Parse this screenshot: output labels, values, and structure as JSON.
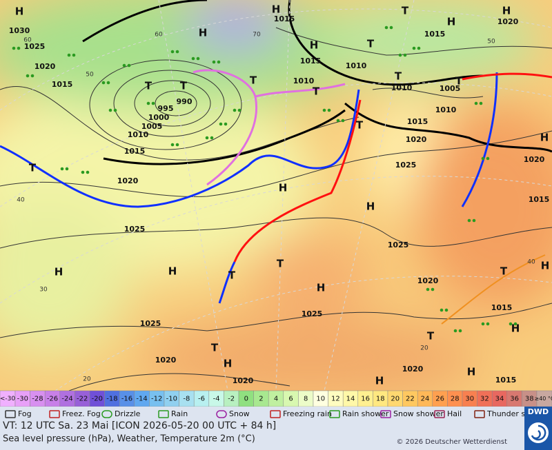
{
  "map": {
    "isobar_labels": [
      "1030",
      "1025",
      "1020",
      "1015",
      "995",
      "990",
      "1000",
      "1005",
      "1010",
      "1015",
      "1020",
      "1025",
      "1025",
      "1020",
      "1020",
      "1015",
      "1015",
      "1010",
      "1010",
      "1010",
      "1005",
      "1010",
      "1015",
      "1020",
      "1025",
      "1025",
      "1025",
      "1020",
      "1015",
      "1020",
      "1015",
      "1020",
      "1015",
      "1020",
      "1015"
    ],
    "high_labels": [
      "H",
      "H",
      "H",
      "H",
      "H",
      "H",
      "H",
      "H",
      "H",
      "H",
      "H",
      "H",
      "H",
      "H",
      "H",
      "H",
      "H"
    ],
    "low_labels": [
      "T",
      "T",
      "T",
      "T",
      "T",
      "T",
      "T",
      "T",
      "T",
      "T",
      "T",
      "T",
      "T",
      "T",
      "T"
    ],
    "graticule_labels": [
      "60",
      "50",
      "40",
      "30",
      "20",
      "70",
      "60",
      "50",
      "40",
      "20"
    ]
  },
  "temperature_scale": {
    "low_label": "<-30",
    "values": [
      -30,
      -28,
      -26,
      -24,
      -22,
      -20,
      -18,
      -16,
      -14,
      -12,
      -10,
      -8,
      -6,
      -4,
      -2,
      0,
      2,
      4,
      6,
      8,
      10,
      12,
      14,
      16,
      18,
      20,
      22,
      24,
      26,
      28,
      30,
      32,
      34,
      36,
      38
    ],
    "colors": [
      "#e8a0f8",
      "#d890f0",
      "#c880e8",
      "#b070e0",
      "#9860d8",
      "#7050d8",
      "#5070e0",
      "#5890e8",
      "#60a8f0",
      "#78c0f0",
      "#90d0f0",
      "#a8e0f0",
      "#b8f0f0",
      "#c8f8e8",
      "#b8f0c0",
      "#90e080",
      "#a8e890",
      "#c0f0a0",
      "#d8f8b0",
      "#ecfcc8",
      "#ffffe0",
      "#fffcc0",
      "#fff8a8",
      "#fff090",
      "#ffe880",
      "#ffd870",
      "#ffc860",
      "#ffb858",
      "#ffa050",
      "#ff9050",
      "#f88050",
      "#f07058",
      "#e86860",
      "#d87870",
      "#c89088"
    ],
    "high_label": "≥40 °C"
  },
  "weather_legend": [
    "Fog",
    "Freez. Fog",
    "Drizzle",
    "Rain",
    "Snow",
    "Freezing rain",
    "Rain shower",
    "Snow shower",
    "Hail",
    "Thunder storm"
  ],
  "footer": {
    "valid_time": "VT: 12 UTC Sa.  23 Mai [ICON 2026-05-20  00 UTC + 84 h]",
    "description": "Sea level pressure (hPa), Weather, Temperature 2m (°C)",
    "copyright": "© 2026 Deutscher Wetterdienst",
    "logo": "DWD"
  }
}
